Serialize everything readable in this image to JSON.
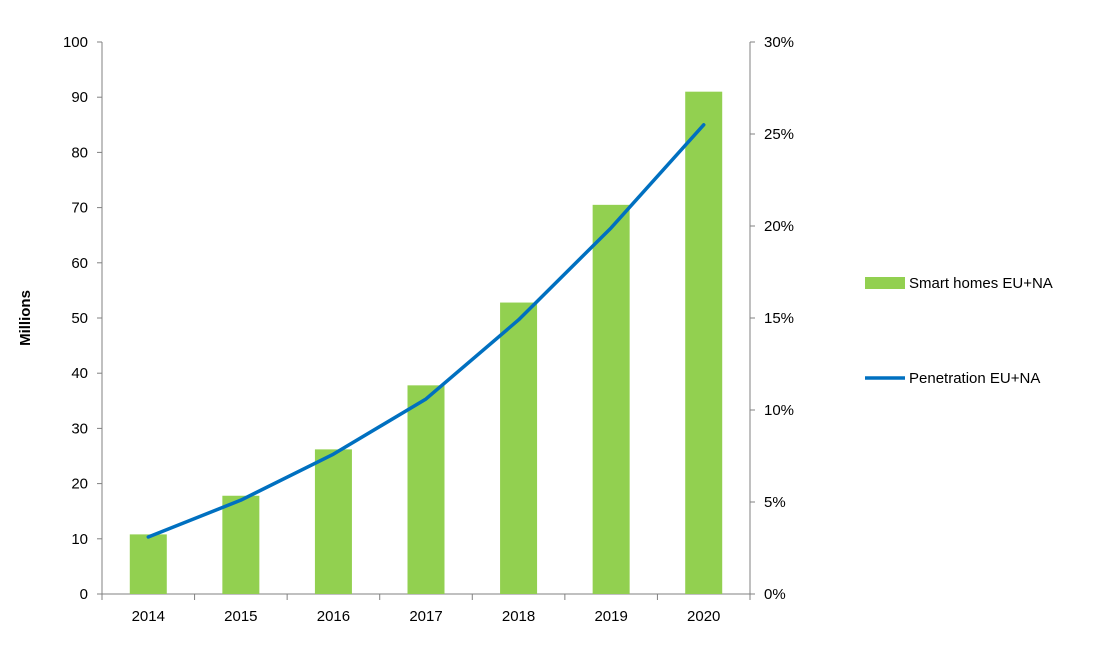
{
  "chart_data": {
    "type": "bar",
    "categories": [
      "2014",
      "2015",
      "2016",
      "2017",
      "2018",
      "2019",
      "2020"
    ],
    "series": [
      {
        "name": "Smart homes EU+NA",
        "type": "bar",
        "axis": "left",
        "values": [
          10.8,
          17.8,
          26.2,
          37.8,
          52.8,
          70.5,
          91.0
        ]
      },
      {
        "name": "Penetration EU+NA",
        "type": "line",
        "axis": "right",
        "values": [
          3.1,
          5.1,
          7.6,
          10.6,
          14.9,
          19.9,
          25.5
        ]
      }
    ],
    "ylabel": "Millions",
    "ylim": [
      0,
      100
    ],
    "yticks": [
      "0",
      "10",
      "20",
      "30",
      "40",
      "50",
      "60",
      "70",
      "80",
      "90",
      "100"
    ],
    "y2lim": [
      0,
      30
    ],
    "y2ticks": [
      "0%",
      "5%",
      "10%",
      "15%",
      "20%",
      "25%",
      "30%"
    ],
    "grid": false,
    "legend_position": "right",
    "colors": {
      "bar": "#92d050",
      "line": "#0070c0"
    }
  }
}
